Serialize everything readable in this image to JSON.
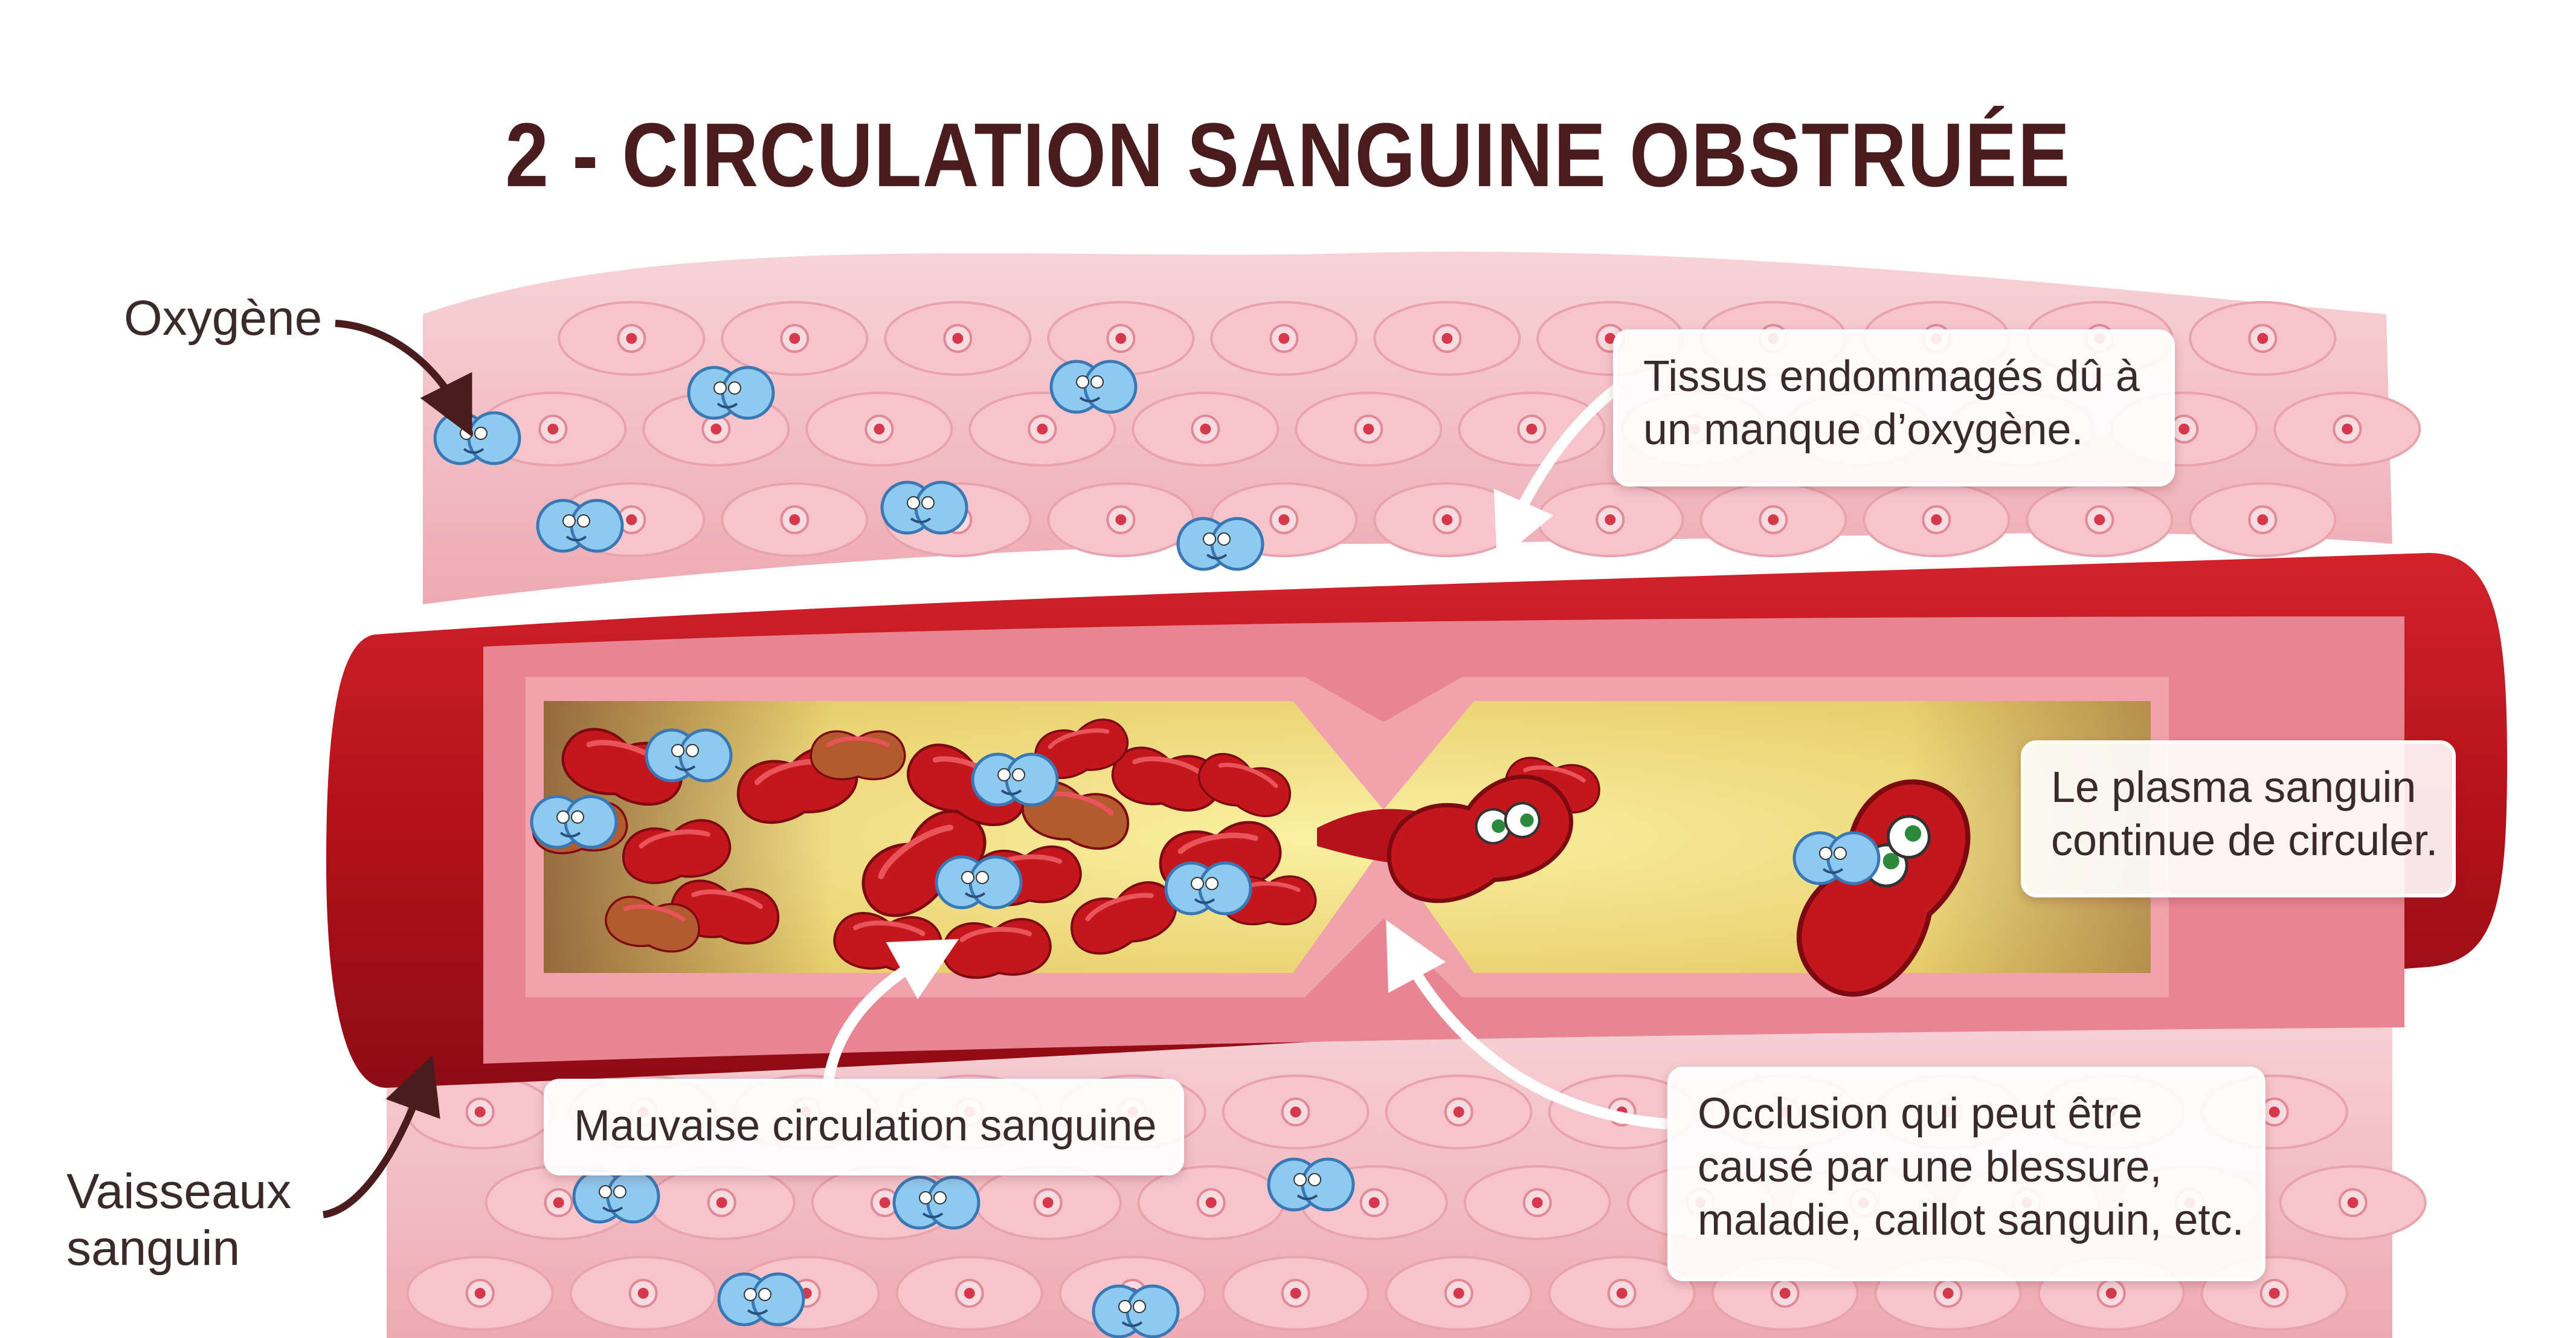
{
  "title": "2 - CIRCULATION SANGUINE OBSTRUÉE",
  "labels": {
    "oxygen": "Oxygène",
    "vessels": [
      "Vaisseaux",
      "sanguin"
    ]
  },
  "callouts": {
    "damaged_tissue": [
      "Tissus endommagés dû à",
      "un manque d’oxygène."
    ],
    "plasma": [
      "Le plasma sanguin",
      "continue de circuler."
    ],
    "poor_circulation": [
      "Mauvaise circulation sanguine"
    ],
    "occlusion": [
      "Occlusion qui peut être",
      "causé par une blessure,",
      "maladie, caillot sanguin, etc."
    ]
  },
  "colors": {
    "title": "#4a1c1e",
    "tissue": "#f2bcc3",
    "vessel_wall": "#b5121b",
    "vessel_inner": "#e88a96",
    "plasma": "#f3e27a",
    "red_cell": "#c4171d",
    "oxygen": "#8ec9ef"
  }
}
